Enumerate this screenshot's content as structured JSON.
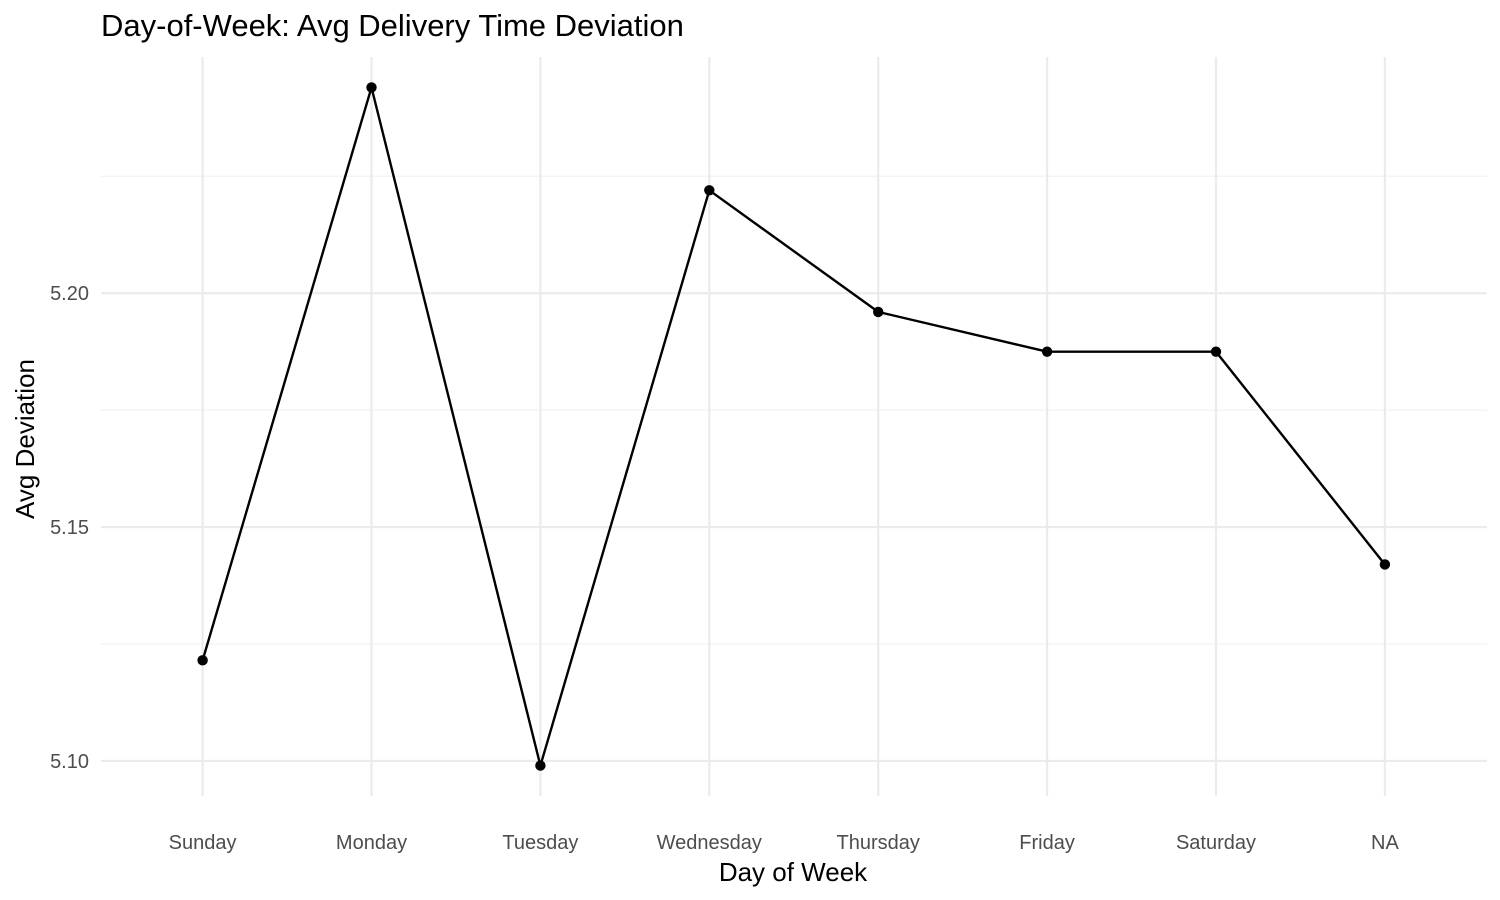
{
  "chart_data": {
    "type": "line",
    "title": "Day-of-Week: Avg Delivery Time Deviation",
    "xlabel": "Day of Week",
    "ylabel": "Avg Deviation",
    "categories": [
      "Sunday",
      "Monday",
      "Tuesday",
      "Wednesday",
      "Thursday",
      "Friday",
      "Saturday",
      "NA"
    ],
    "values": [
      5.1215,
      5.244,
      5.099,
      5.222,
      5.196,
      5.1875,
      5.1875,
      5.142
    ],
    "ylim": [
      5.0925,
      5.2505
    ],
    "yticks": [
      5.1,
      5.15,
      5.2
    ],
    "ytick_labels": [
      "5.10",
      "5.15",
      "5.20"
    ],
    "yminor": [
      5.125,
      5.175,
      5.225
    ],
    "grid": true,
    "legend": "none",
    "colors": {
      "line": "#000000",
      "point": "#000000",
      "grid_major": "#ebebeb",
      "grid_minor": "#f2f2f2",
      "tick_text": "#4d4d4d"
    }
  }
}
